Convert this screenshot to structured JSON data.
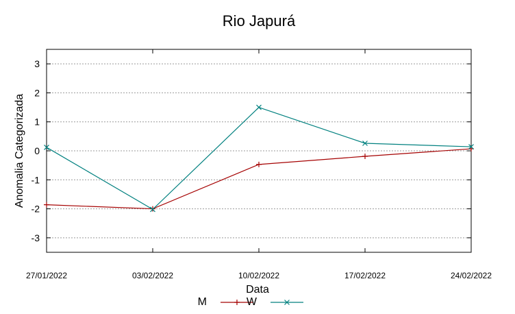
{
  "chart_data": {
    "type": "line",
    "title": "Rio Japurá",
    "xlabel": "Data",
    "ylabel": "Anomalia Categorizada",
    "categories": [
      "27/01/2022",
      "03/02/2022",
      "10/02/2022",
      "17/02/2022",
      "24/02/2022"
    ],
    "yticks": [
      "3",
      "2",
      "1",
      "0",
      "-1",
      "-2",
      "-3"
    ],
    "ylim": [
      -3.5,
      3.5
    ],
    "grid": true,
    "legend_placement": "bottom",
    "series": [
      {
        "name": "M",
        "color": "#a50000",
        "marker": "plus",
        "values": [
          -1.86,
          -2.0,
          -0.47,
          -0.19,
          0.07
        ]
      },
      {
        "name": "W",
        "color": "#00807f",
        "marker": "x",
        "values": [
          0.12,
          -2.02,
          1.5,
          0.26,
          0.14
        ]
      }
    ]
  }
}
